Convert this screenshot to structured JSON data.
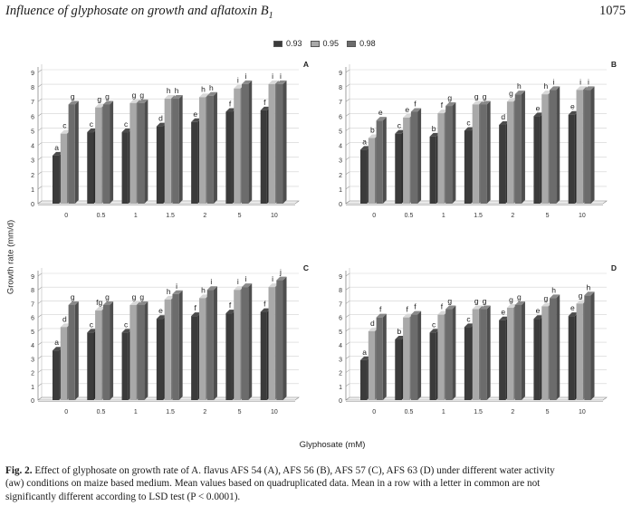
{
  "header": {
    "title_main": "Influence of glyphosate on growth and aflatoxin B",
    "title_sub": "1",
    "page_number": "1075"
  },
  "figure": {
    "y_axis_title": "Growth rate (mm/d)",
    "x_axis_title": "Glyphosate (mM)",
    "legend": [
      {
        "label": "0.93",
        "color": "#3b3b3b"
      },
      {
        "label": "0.95",
        "color": "#a9a9a9"
      },
      {
        "label": "0.98",
        "color": "#6c6c6c"
      }
    ]
  },
  "chart_data": [
    {
      "type": "bar",
      "panel_label": "A",
      "categories": [
        "0",
        "0.5",
        "1",
        "1.5",
        "2",
        "5",
        "10"
      ],
      "ylim": [
        0,
        9
      ],
      "yticks": [
        "0",
        "1",
        "2",
        "3",
        "4",
        "5",
        "6",
        "7",
        "8",
        "9"
      ],
      "series": [
        {
          "name": "0.93",
          "values": [
            3.3,
            4.9,
            4.9,
            5.3,
            5.6,
            6.3,
            6.4
          ],
          "letters": [
            "a",
            "c",
            "c",
            "d",
            "e",
            "f",
            "f"
          ]
        },
        {
          "name": "0.95",
          "values": [
            4.8,
            6.6,
            6.9,
            7.2,
            7.3,
            7.9,
            8.2
          ],
          "letters": [
            "c",
            "g",
            "g",
            "h",
            "h",
            "i",
            "i"
          ]
        },
        {
          "name": "0.98",
          "values": [
            6.8,
            6.8,
            6.9,
            7.2,
            7.4,
            8.2,
            8.2
          ],
          "letters": [
            "g",
            "g",
            "g",
            "h",
            "h",
            "i",
            "i"
          ]
        }
      ]
    },
    {
      "type": "bar",
      "panel_label": "B",
      "categories": [
        "0",
        "0.5",
        "1",
        "1.5",
        "2",
        "5",
        "10"
      ],
      "ylim": [
        0,
        9
      ],
      "yticks": [
        "0",
        "1",
        "2",
        "3",
        "4",
        "5",
        "6",
        "7",
        "8",
        "9"
      ],
      "series": [
        {
          "name": "0.93",
          "values": [
            3.7,
            4.8,
            4.6,
            5.0,
            5.4,
            6.0,
            6.1
          ],
          "letters": [
            "a",
            "c",
            "b",
            "c",
            "d",
            "e",
            "e"
          ]
        },
        {
          "name": "0.95",
          "values": [
            4.5,
            5.9,
            6.2,
            6.8,
            7.0,
            7.5,
            7.8
          ],
          "letters": [
            "b",
            "e",
            "f",
            "g",
            "g",
            "h",
            "i"
          ]
        },
        {
          "name": "0.98",
          "values": [
            5.7,
            6.3,
            6.7,
            6.8,
            7.5,
            7.8,
            7.8
          ],
          "letters": [
            "e",
            "f",
            "g",
            "g",
            "h",
            "i",
            "i"
          ]
        }
      ]
    },
    {
      "type": "bar",
      "panel_label": "C",
      "categories": [
        "0",
        "0.5",
        "1",
        "1.5",
        "2",
        "5",
        "10"
      ],
      "ylim": [
        0,
        9
      ],
      "yticks": [
        "0",
        "1",
        "2",
        "3",
        "4",
        "5",
        "6",
        "7",
        "8",
        "9"
      ],
      "series": [
        {
          "name": "0.93",
          "values": [
            3.6,
            4.9,
            4.9,
            5.9,
            6.1,
            6.3,
            6.4
          ],
          "letters": [
            "a",
            "c",
            "c",
            "e",
            "f",
            "f",
            "f"
          ]
        },
        {
          "name": "0.95",
          "values": [
            5.3,
            6.5,
            6.9,
            7.3,
            7.4,
            8.0,
            8.2
          ],
          "letters": [
            "d",
            "fg",
            "g",
            "h",
            "h",
            "i",
            "i"
          ]
        },
        {
          "name": "0.98",
          "values": [
            6.9,
            6.9,
            6.9,
            7.7,
            8.0,
            8.2,
            8.7
          ],
          "letters": [
            "g",
            "g",
            "g",
            "i",
            "i",
            "i",
            "j"
          ]
        }
      ]
    },
    {
      "type": "bar",
      "panel_label": "D",
      "categories": [
        "0",
        "0.5",
        "1",
        "1.5",
        "2",
        "5",
        "10"
      ],
      "ylim": [
        0,
        9
      ],
      "yticks": [
        "0",
        "1",
        "2",
        "3",
        "4",
        "5",
        "6",
        "7",
        "8",
        "9"
      ],
      "series": [
        {
          "name": "0.93",
          "values": [
            2.9,
            4.4,
            4.9,
            5.3,
            5.8,
            5.9,
            6.1
          ],
          "letters": [
            "a",
            "b",
            "c",
            "c",
            "e",
            "e",
            "e"
          ]
        },
        {
          "name": "0.95",
          "values": [
            5.0,
            6.0,
            6.2,
            6.6,
            6.7,
            6.8,
            7.0
          ],
          "letters": [
            "d",
            "f",
            "f",
            "g",
            "g",
            "g",
            "g"
          ]
        },
        {
          "name": "0.98",
          "values": [
            6.0,
            6.2,
            6.6,
            6.6,
            6.9,
            7.4,
            7.6
          ],
          "letters": [
            "f",
            "f",
            "g",
            "g",
            "g",
            "h",
            "h"
          ]
        }
      ]
    }
  ],
  "caption": {
    "lines": [
      {
        "prefix": "Fig. 2.",
        "text": " Effect of glyphosate on growth rate of A. flavus AFS 54 (A), AFS 56 (B), AFS 57 (C), AFS 63 (D) under different water activity"
      },
      {
        "prefix": "",
        "text": "(aw) conditions on maize based medium. Mean values based on quadruplicated data. Mean in a row with a letter in common are not"
      },
      {
        "prefix": "",
        "text": "significantly different according to LSD test (P < 0.0001)."
      }
    ]
  }
}
